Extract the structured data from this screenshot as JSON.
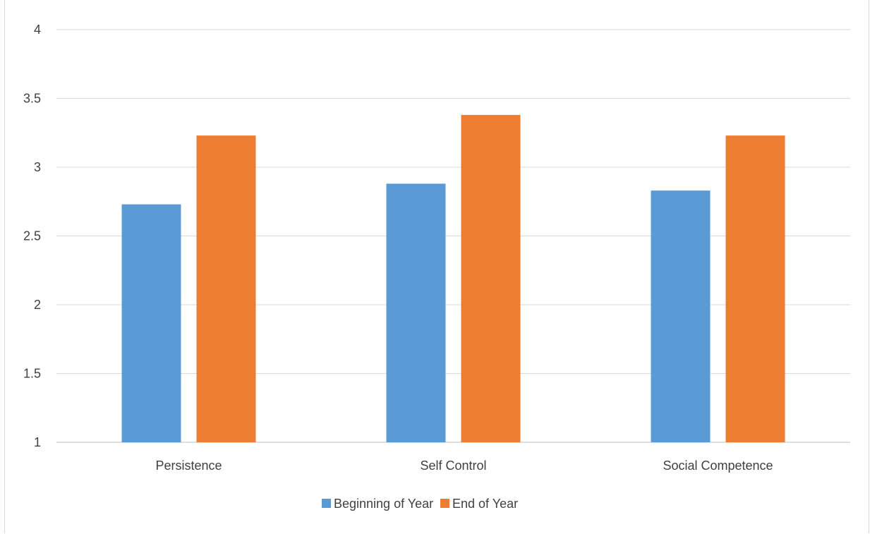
{
  "chart_data": {
    "type": "bar",
    "categories": [
      "Persistence",
      "Self Control",
      "Social Competence"
    ],
    "series": [
      {
        "name": "Beginning of Year",
        "color": "#5b9bd5",
        "values": [
          2.73,
          2.88,
          2.83
        ]
      },
      {
        "name": "End of Year",
        "color": "#ed7d31",
        "values": [
          3.23,
          3.38,
          3.23
        ]
      }
    ],
    "ylim": [
      1,
      4
    ],
    "yticks": [
      "1",
      "1.5",
      "2",
      "2.5",
      "3",
      "3.5",
      "4"
    ],
    "grid": true,
    "legend_position": "bottom",
    "gridline_color": "#d9d9d9",
    "axis_color": "#bfbfbf"
  }
}
